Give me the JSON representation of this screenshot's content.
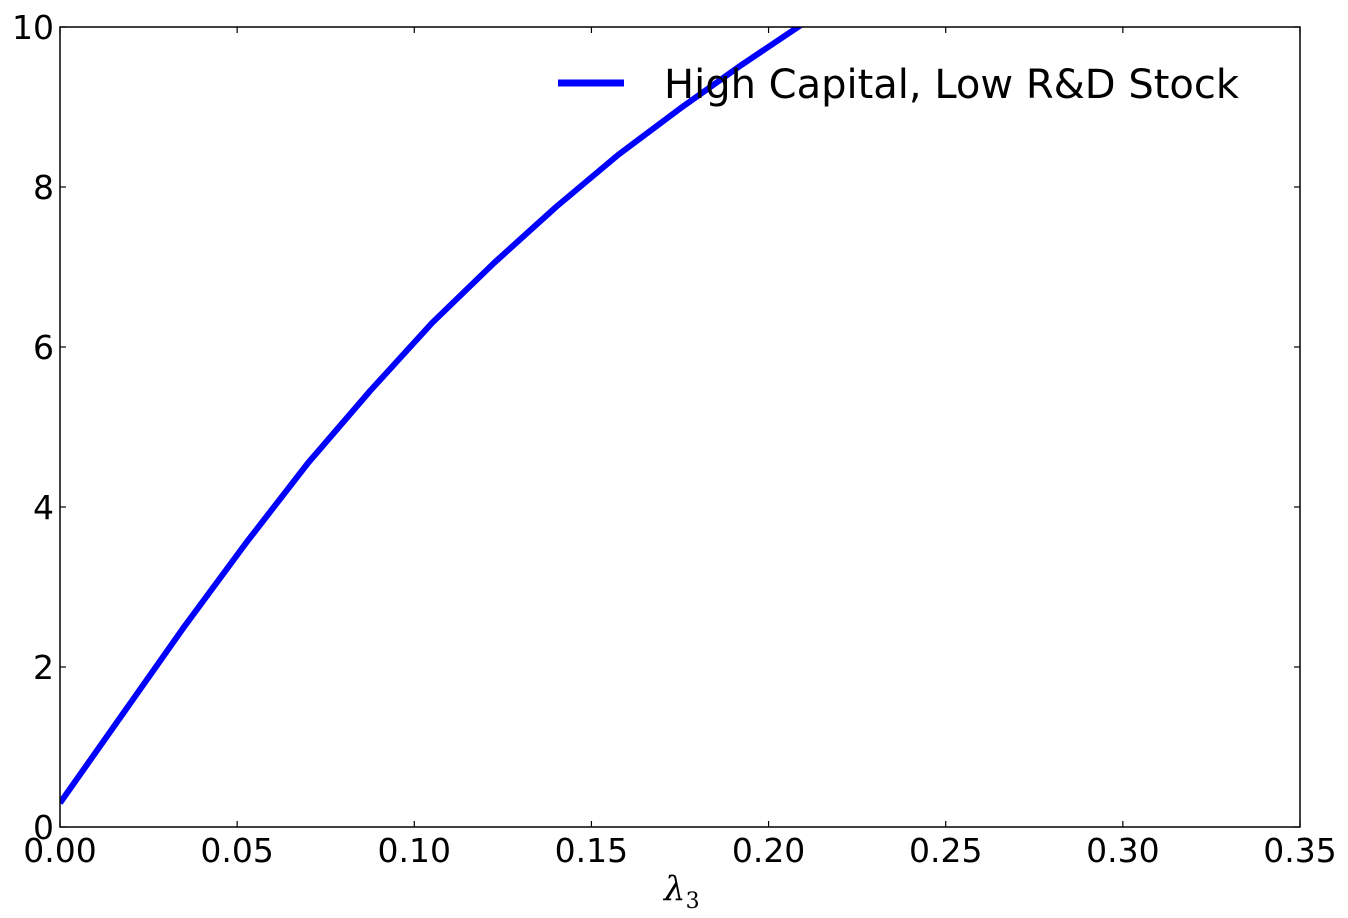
{
  "chart_data": {
    "type": "line",
    "title": "",
    "xlabel": "λ",
    "xlabel_subscript": "3",
    "ylabel": "",
    "xlim": [
      0,
      0.35
    ],
    "ylim": [
      0,
      10
    ],
    "grid": false,
    "legend_position": "top-right",
    "x_ticks": [
      0.0,
      0.05,
      0.1,
      0.15,
      0.2,
      0.25,
      0.3,
      0.35
    ],
    "x_tick_labels": [
      "0.00",
      "0.05",
      "0.10",
      "0.15",
      "0.20",
      "0.25",
      "0.30",
      "0.35"
    ],
    "y_ticks": [
      0,
      2,
      4,
      6,
      8,
      10
    ],
    "y_tick_labels": [
      "0",
      "2",
      "4",
      "6",
      "8",
      "10"
    ],
    "series": [
      {
        "name": "High Capital, Low R&D Stock",
        "color": "#0000ff",
        "x": [
          0.0,
          0.0175,
          0.035,
          0.0525,
          0.07,
          0.0875,
          0.105,
          0.1225,
          0.14,
          0.1575,
          0.175,
          0.1925,
          0.21
        ],
        "y": [
          0.3,
          1.4,
          2.5,
          3.55,
          4.55,
          5.45,
          6.3,
          7.05,
          7.75,
          8.4,
          8.98,
          9.53,
          10.05
        ]
      }
    ]
  }
}
